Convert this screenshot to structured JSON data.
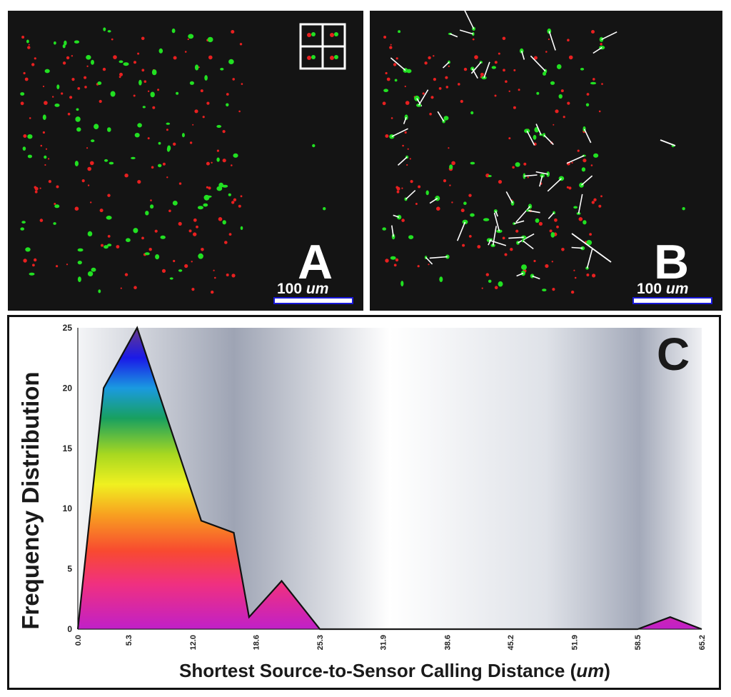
{
  "panels": {
    "a": {
      "letter": "A",
      "scale": "100 ",
      "scale_unit": "um"
    },
    "b": {
      "letter": "B",
      "scale": "100 ",
      "scale_unit": "um"
    },
    "c": {
      "letter": "C"
    }
  },
  "chart_data": {
    "type": "area",
    "title": "",
    "ylabel": "Frequency Distribution",
    "xlabel_prefix": "Shortest Source-to-Sensor Calling Distance (",
    "xlabel_unit": "um",
    "xlabel_suffix": ")",
    "x_ticks": [
      "0.0",
      "5.3",
      "12.0",
      "18.6",
      "25.3",
      "31.9",
      "38.6",
      "45.2",
      "51.9",
      "58.5",
      "65.2"
    ],
    "y_ticks": [
      "0",
      "5",
      "10",
      "15",
      "20",
      "25"
    ],
    "xlim": [
      0,
      65.2
    ],
    "ylim": [
      0,
      25
    ],
    "grid": false,
    "series": [
      {
        "x": [
          0.0,
          2.7,
          6.2,
          12.9,
          16.3,
          17.9,
          21.3,
          25.3,
          58.5,
          61.9,
          65.2
        ],
        "y": [
          0,
          20,
          25,
          9,
          8,
          1,
          4,
          0,
          0,
          1,
          0
        ]
      }
    ]
  }
}
